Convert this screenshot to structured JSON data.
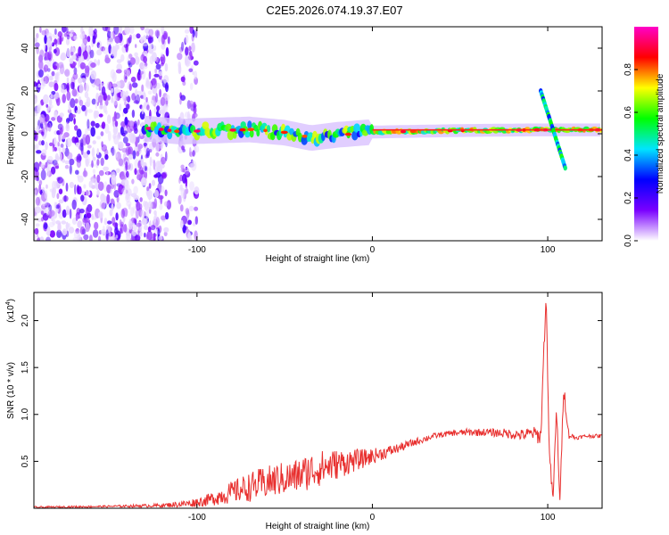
{
  "title": "C2E5.2026.074.19.37.E07",
  "chart_data": [
    {
      "type": "heatmap",
      "id": "spectrogram",
      "xlabel": "Height of straight line (km)",
      "ylabel": "Frequency (Hz)",
      "xlim": [
        -193,
        131
      ],
      "ylim": [
        -50,
        50
      ],
      "x_ticks": [
        -100,
        0,
        100
      ],
      "x_tick_labels": [
        "-100",
        "0",
        "100"
      ],
      "y_ticks": [
        -40,
        -20,
        0,
        20,
        40
      ],
      "y_tick_labels": [
        "-40",
        "-20",
        "0",
        "20",
        "40"
      ],
      "colorbar": {
        "label": "Normalized spectral amplitude",
        "range": [
          0,
          1
        ],
        "ticks": [
          0.0,
          0.2,
          0.4,
          0.6,
          0.8
        ],
        "tick_labels": [
          "0.0",
          "0.2",
          "0.4",
          "0.6",
          "0.8"
        ],
        "colormap": [
          "#ffffff",
          "#7a00ff",
          "#0000ff",
          "#00e5ff",
          "#00ff00",
          "#ffff00",
          "#ff0000",
          "#ff00c8"
        ]
      },
      "features": {
        "noise_region_x": [
          -193,
          -116
        ],
        "noise_strip_x": [
          -110,
          -100
        ],
        "signal_band": [
          {
            "x": -130,
            "f": 2.5
          },
          {
            "x": -110,
            "f": 1.0
          },
          {
            "x": -90,
            "f": 1.5
          },
          {
            "x": -70,
            "f": 2.0
          },
          {
            "x": -50,
            "f": 0.5
          },
          {
            "x": -35,
            "f": -2.0
          },
          {
            "x": -20,
            "f": -0.5
          },
          {
            "x": 0,
            "f": 0.8
          },
          {
            "x": 50,
            "f": 1.5
          },
          {
            "x": 90,
            "f": 1.8
          },
          {
            "x": 131,
            "f": 1.8
          }
        ],
        "spike": {
          "x_range": [
            96,
            110
          ],
          "f_range": [
            -16,
            20
          ]
        }
      }
    },
    {
      "type": "line",
      "id": "snr",
      "xlabel": "Height of straight line (km)",
      "ylabel": "SNR (10 * v/v)",
      "y_multiplier": "(x10",
      "y_multiplier_exp": "4",
      "y_multiplier_close": ")",
      "xlim": [
        -193,
        131
      ],
      "ylim": [
        0,
        2.3
      ],
      "x_ticks": [
        -100,
        0,
        100
      ],
      "x_tick_labels": [
        "-100",
        "0",
        "100"
      ],
      "y_ticks": [
        0.5,
        1.0,
        1.5,
        2.0
      ],
      "y_tick_labels": [
        "0.5",
        "1.0",
        "1.5",
        "2.0"
      ],
      "series": [
        {
          "name": "SNR",
          "color": "#e8302f",
          "x": [
            -193,
            -150,
            -120,
            -105,
            -95,
            -85,
            -75,
            -65,
            -55,
            -45,
            -35,
            -25,
            -15,
            -5,
            5,
            15,
            25,
            35,
            45,
            55,
            65,
            75,
            85,
            92,
            96,
            99,
            101,
            103,
            105,
            107,
            109,
            112,
            116,
            122,
            131
          ],
          "y": [
            0.01,
            0.02,
            0.03,
            0.05,
            0.08,
            0.14,
            0.2,
            0.25,
            0.3,
            0.33,
            0.4,
            0.45,
            0.49,
            0.53,
            0.58,
            0.64,
            0.71,
            0.77,
            0.8,
            0.81,
            0.81,
            0.8,
            0.78,
            0.8,
            0.76,
            2.28,
            0.55,
            0.08,
            1.05,
            0.05,
            1.3,
            0.78,
            0.75,
            0.77,
            0.77
          ],
          "noise_amplitude": [
            0.01,
            0.01,
            0.02,
            0.04,
            0.06,
            0.1,
            0.14,
            0.17,
            0.18,
            0.18,
            0.2,
            0.18,
            0.14,
            0.1,
            0.07,
            0.05,
            0.04,
            0.03,
            0.03,
            0.04,
            0.04,
            0.05,
            0.06,
            0.07,
            0.1,
            0.1,
            0.1,
            0.05,
            0.1,
            0.05,
            0.1,
            0.04,
            0.02,
            0.02,
            0.02
          ]
        }
      ]
    }
  ]
}
